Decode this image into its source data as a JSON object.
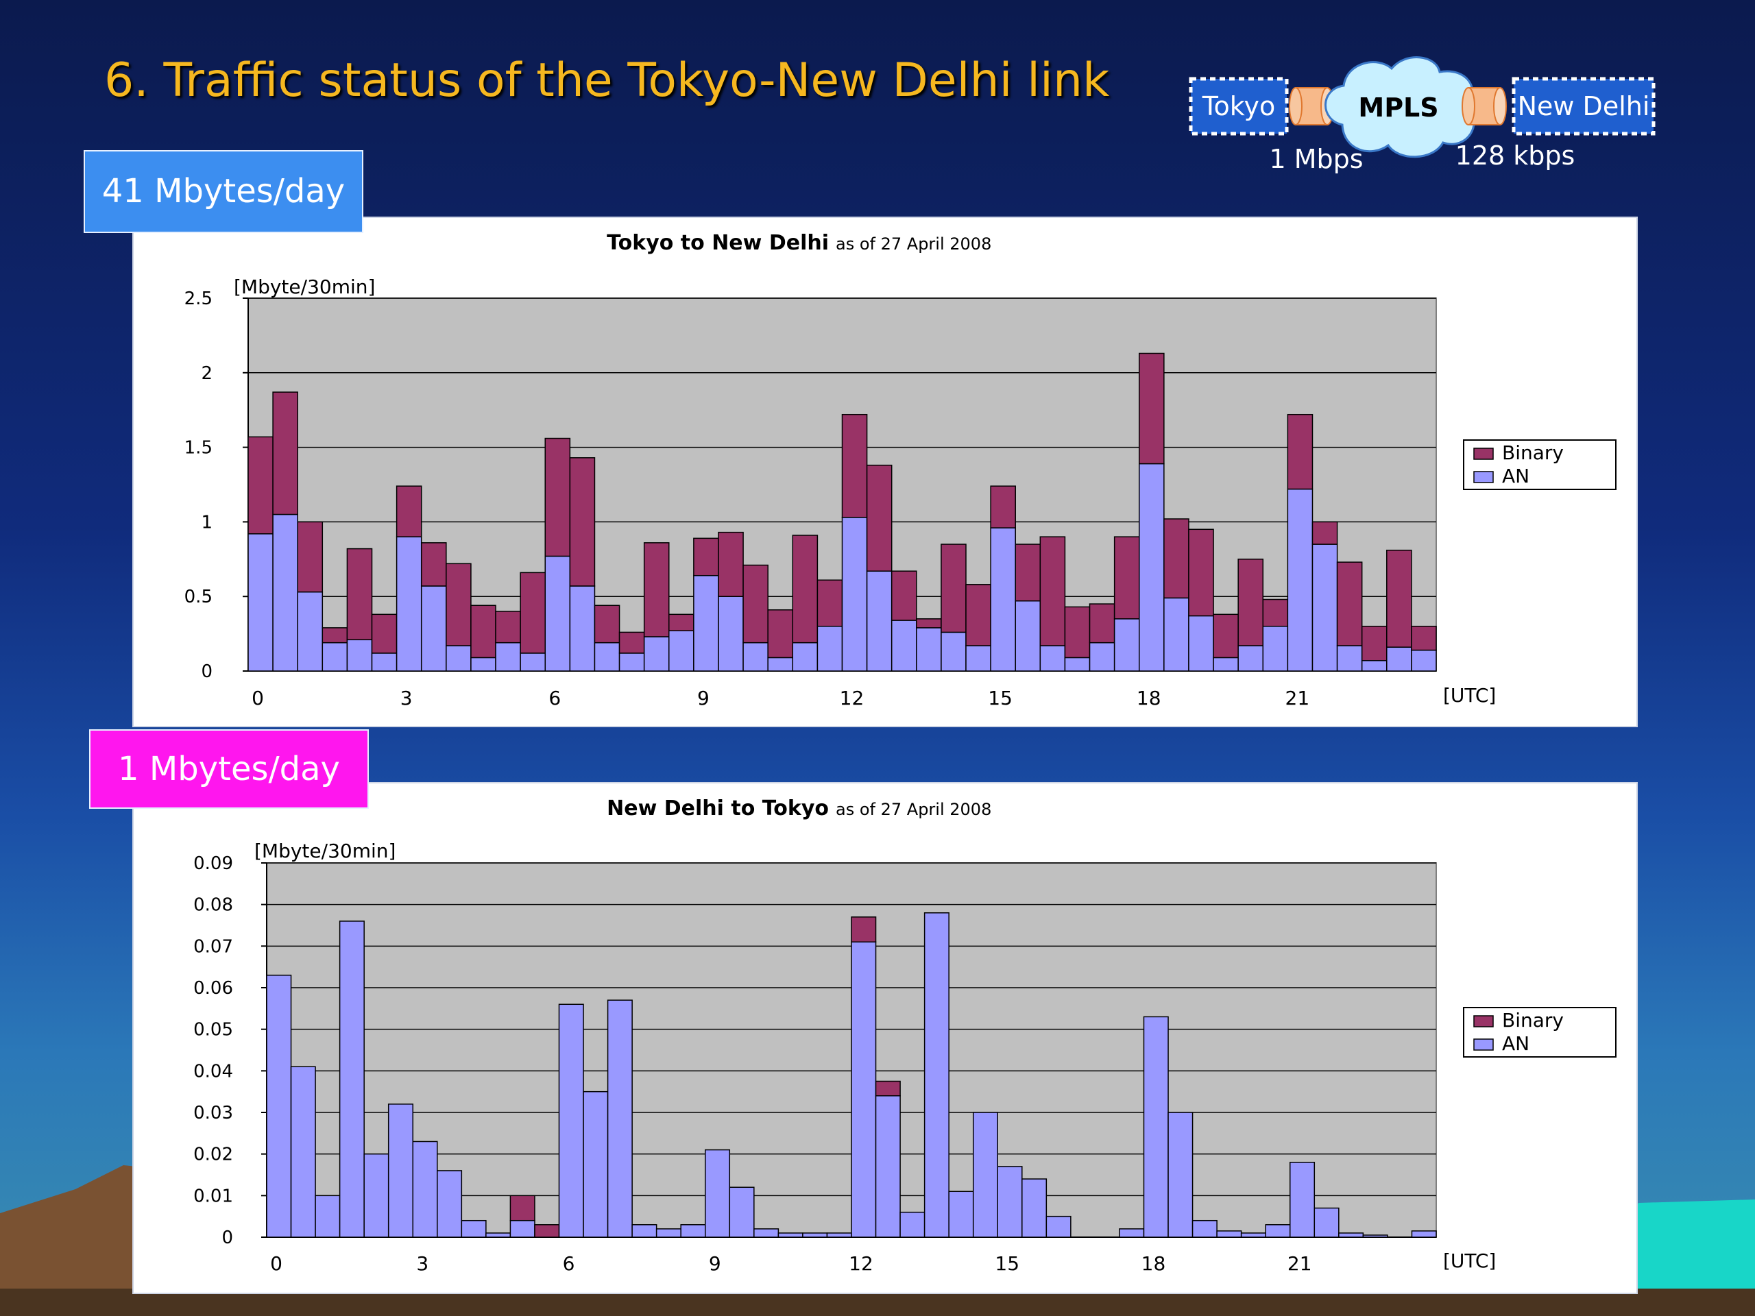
{
  "slide": {
    "title": "6.  Traffic status of the Tokyo-New Delhi link",
    "colors": {
      "title": "#f6b820",
      "binary": "#993366",
      "an": "#9999ff",
      "plot_bg": "#c0c0c0"
    }
  },
  "network": {
    "left_node": "Tokyo",
    "cloud": "MPLS",
    "right_node": "New Delhi",
    "left_speed": "1 Mbps",
    "right_speed": "128 kbps"
  },
  "callouts": {
    "first": "41 Mbytes/day",
    "second": "1 Mbytes/day"
  },
  "chart_data": [
    {
      "type": "bar",
      "stacked": true,
      "title": "Tokyo to New Delhi",
      "subtitle": "as of 27 April 2008",
      "unit_label": "[Mbyte/30min]",
      "xlabel": "[UTC]",
      "ylim": [
        0,
        2.5
      ],
      "y_ticks": [
        0,
        0.5,
        1,
        1.5,
        2,
        2.5
      ],
      "y_tick_labels": [
        "0",
        "0.5",
        "1",
        "1.5",
        "2",
        "2.5"
      ],
      "x_tick_labels": [
        "0",
        "3",
        "6",
        "9",
        "12",
        "15",
        "18",
        "21"
      ],
      "legend_position": "right",
      "grid": true,
      "categories": [
        "0:00",
        "0:30",
        "1:00",
        "1:30",
        "2:00",
        "2:30",
        "3:00",
        "3:30",
        "4:00",
        "4:30",
        "5:00",
        "5:30",
        "6:00",
        "6:30",
        "7:00",
        "7:30",
        "8:00",
        "8:30",
        "9:00",
        "9:30",
        "10:00",
        "10:30",
        "11:00",
        "11:30",
        "12:00",
        "12:30",
        "13:00",
        "13:30",
        "14:00",
        "14:30",
        "15:00",
        "15:30",
        "16:00",
        "16:30",
        "17:00",
        "17:30",
        "18:00",
        "18:30",
        "19:00",
        "19:30",
        "20:00",
        "20:30",
        "21:00",
        "21:30",
        "22:00",
        "22:30",
        "23:00",
        "23:30"
      ],
      "series": [
        {
          "name": "AN",
          "values": [
            0.92,
            1.05,
            0.53,
            0.19,
            0.21,
            0.12,
            0.9,
            0.57,
            0.17,
            0.09,
            0.19,
            0.12,
            0.77,
            0.57,
            0.19,
            0.12,
            0.23,
            0.27,
            0.64,
            0.5,
            0.19,
            0.09,
            0.19,
            0.3,
            1.03,
            0.67,
            0.34,
            0.29,
            0.26,
            0.17,
            0.96,
            0.47,
            0.17,
            0.09,
            0.19,
            0.35,
            1.39,
            0.49,
            0.37,
            0.09,
            0.17,
            0.3,
            1.22,
            0.85,
            0.17,
            0.07,
            0.16,
            0.14
          ]
        },
        {
          "name": "Binary",
          "values": [
            0.65,
            0.82,
            0.47,
            0.1,
            0.61,
            0.26,
            0.34,
            0.29,
            0.55,
            0.35,
            0.21,
            0.54,
            0.79,
            0.86,
            0.25,
            0.14,
            0.63,
            0.11,
            0.25,
            0.43,
            0.52,
            0.32,
            0.72,
            0.31,
            0.69,
            0.71,
            0.33,
            0.06,
            0.59,
            0.41,
            0.28,
            0.38,
            0.73,
            0.34,
            0.26,
            0.55,
            0.74,
            0.53,
            0.58,
            0.29,
            0.58,
            0.18,
            0.5,
            0.15,
            0.56,
            0.23,
            0.65,
            0.16
          ]
        }
      ]
    },
    {
      "type": "bar",
      "stacked": true,
      "title": "New Delhi to Tokyo",
      "subtitle": "as of 27 April 2008",
      "unit_label": "[Mbyte/30min]",
      "xlabel": "[UTC]",
      "ylim": [
        0,
        0.09
      ],
      "y_ticks": [
        0,
        0.01,
        0.02,
        0.03,
        0.04,
        0.05,
        0.06,
        0.07,
        0.08,
        0.09
      ],
      "y_tick_labels": [
        "0",
        "0.01",
        "0.02",
        "0.03",
        "0.04",
        "0.05",
        "0.06",
        "0.07",
        "0.08",
        "0.09"
      ],
      "x_tick_labels": [
        "0",
        "3",
        "6",
        "9",
        "12",
        "15",
        "18",
        "21"
      ],
      "legend_position": "right",
      "grid": true,
      "categories": [
        "0:00",
        "0:30",
        "1:00",
        "1:30",
        "2:00",
        "2:30",
        "3:00",
        "3:30",
        "4:00",
        "4:30",
        "5:00",
        "5:30",
        "6:00",
        "6:30",
        "7:00",
        "7:30",
        "8:00",
        "8:30",
        "9:00",
        "9:30",
        "10:00",
        "10:30",
        "11:00",
        "11:30",
        "12:00",
        "12:30",
        "13:00",
        "13:30",
        "14:00",
        "14:30",
        "15:00",
        "15:30",
        "16:00",
        "16:30",
        "17:00",
        "17:30",
        "18:00",
        "18:30",
        "19:00",
        "19:30",
        "20:00",
        "20:30",
        "21:00",
        "21:30",
        "22:00",
        "22:30",
        "23:00",
        "23:30"
      ],
      "series": [
        {
          "name": "AN",
          "values": [
            0.063,
            0.041,
            0.01,
            0.076,
            0.02,
            0.032,
            0.023,
            0.016,
            0.004,
            0.001,
            0.004,
            0.0,
            0.056,
            0.035,
            0.057,
            0.003,
            0.002,
            0.003,
            0.021,
            0.012,
            0.002,
            0.001,
            0.001,
            0.001,
            0.071,
            0.034,
            0.006,
            0.078,
            0.011,
            0.03,
            0.017,
            0.014,
            0.005,
            0.0,
            0.0,
            0.002,
            0.053,
            0.03,
            0.004,
            0.0015,
            0.001,
            0.003,
            0.018,
            0.007,
            0.001,
            0.0005,
            0.0,
            0.0015
          ]
        },
        {
          "name": "Binary",
          "values": [
            0,
            0,
            0,
            0,
            0,
            0,
            0,
            0,
            0,
            0,
            0.006,
            0.003,
            0,
            0,
            0,
            0,
            0,
            0,
            0,
            0,
            0,
            0,
            0,
            0,
            0.006,
            0.0035,
            0,
            0,
            0,
            0,
            0,
            0,
            0,
            0,
            0,
            0,
            0,
            0,
            0,
            0,
            0,
            0,
            0,
            0,
            0,
            0,
            0,
            0
          ]
        }
      ]
    }
  ]
}
